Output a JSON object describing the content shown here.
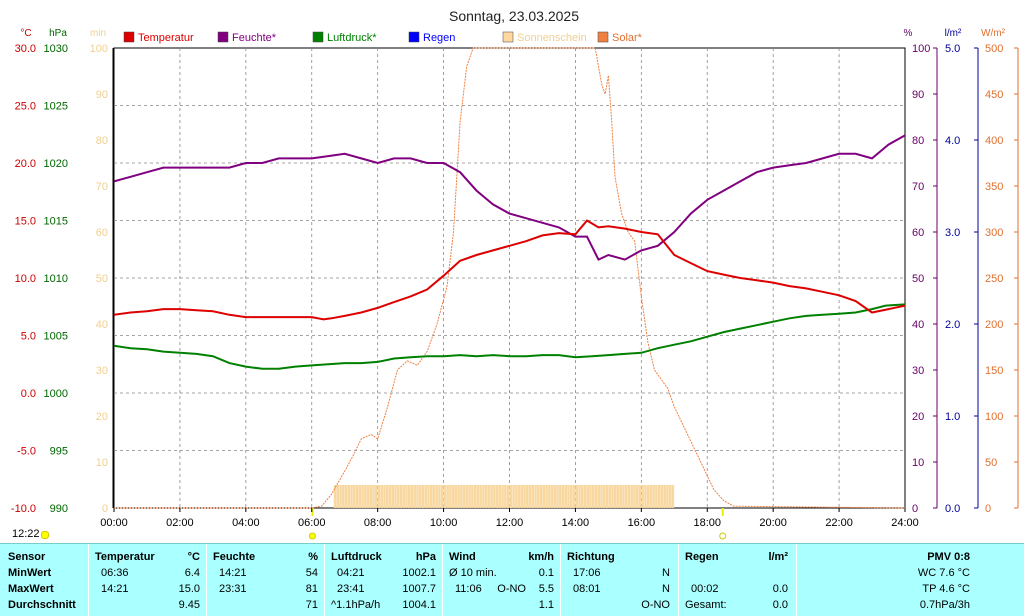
{
  "chart_data": {
    "type": "line",
    "title": "Sonntag, 23.03.2025",
    "x_ticks": [
      "00:00",
      "02:00",
      "04:00",
      "06:00",
      "08:00",
      "10:00",
      "12:00",
      "14:00",
      "16:00",
      "18:00",
      "20:00",
      "22:00",
      "24:00"
    ],
    "left_axes": [
      {
        "unit": "°C",
        "color": "#cc0000",
        "ticks": [
          "30.0",
          "25.0",
          "20.0",
          "15.0",
          "10.0",
          "5.0",
          "0.0",
          "-5.0",
          "-10.0"
        ],
        "range": [
          -10,
          30
        ]
      },
      {
        "unit": "hPa",
        "color": "#006600",
        "ticks": [
          "1030",
          "1025",
          "1020",
          "1015",
          "1010",
          "1005",
          "1000",
          "995",
          "990"
        ],
        "range": [
          990,
          1030
        ]
      },
      {
        "unit": "min",
        "color": "#f0d090",
        "ticks": [
          "100",
          "90",
          "80",
          "70",
          "60",
          "50",
          "40",
          "30",
          "20",
          "10",
          "0"
        ],
        "range": [
          0,
          100
        ]
      }
    ],
    "right_axes": [
      {
        "unit": "%",
        "color": "#660066",
        "ticks": [
          "100",
          "90",
          "80",
          "70",
          "60",
          "50",
          "40",
          "30",
          "20",
          "10",
          "0"
        ],
        "range": [
          0,
          100
        ]
      },
      {
        "unit": "l/m²",
        "color": "#000099",
        "ticks": [
          "5.0",
          "4.0",
          "3.0",
          "2.0",
          "1.0",
          "0.0"
        ],
        "range": [
          0,
          5
        ]
      },
      {
        "unit": "W/m²",
        "color": "#e07030",
        "ticks": [
          "500",
          "450",
          "400",
          "350",
          "300",
          "250",
          "200",
          "150",
          "100",
          "50",
          "0"
        ],
        "range": [
          0,
          500
        ]
      }
    ],
    "legend": [
      {
        "label": "Temperatur",
        "color": "#dd0000"
      },
      {
        "label": "Feuchte*",
        "color": "#800080"
      },
      {
        "label": "Luftdruck*",
        "color": "#008000"
      },
      {
        "label": "Regen",
        "color": "#0000ff"
      },
      {
        "label": "Sonnenschein",
        "color": "#ffd8a0"
      },
      {
        "label": "Solar*",
        "color": "#f08040"
      }
    ],
    "series": [
      {
        "name": "Temperatur",
        "axis": "°C",
        "color": "#dd0000",
        "x": [
          0,
          0.5,
          1,
          1.5,
          2,
          2.5,
          3,
          3.5,
          4,
          4.5,
          5,
          5.5,
          6,
          6.36,
          6.6,
          7,
          7.5,
          8,
          8.5,
          9,
          9.5,
          10,
          10.5,
          11,
          11.5,
          12,
          12.5,
          13,
          13.5,
          14,
          14.35,
          14.7,
          15,
          15.5,
          16,
          16.5,
          17,
          17.5,
          18,
          18.5,
          19,
          19.5,
          20,
          20.5,
          21,
          21.5,
          22,
          22.5,
          23,
          23.5,
          24
        ],
        "y": [
          6.8,
          7.0,
          7.1,
          7.3,
          7.3,
          7.2,
          7.1,
          6.8,
          6.6,
          6.6,
          6.6,
          6.6,
          6.6,
          6.4,
          6.5,
          6.7,
          7.0,
          7.4,
          7.9,
          8.4,
          9.0,
          10.2,
          11.5,
          12.0,
          12.4,
          12.8,
          13.2,
          13.7,
          13.9,
          13.8,
          15.0,
          14.4,
          14.5,
          14.3,
          14.0,
          13.8,
          12.0,
          11.3,
          10.6,
          10.3,
          10.0,
          9.8,
          9.6,
          9.3,
          9.1,
          8.8,
          8.5,
          8.0,
          7.0,
          7.3,
          7.6
        ]
      },
      {
        "name": "Feuchte*",
        "axis": "%",
        "color": "#800080",
        "x": [
          0,
          0.5,
          1,
          1.5,
          2,
          2.5,
          3,
          3.5,
          4,
          4.5,
          5,
          5.5,
          6,
          6.5,
          7,
          7.5,
          8,
          8.5,
          9,
          9.5,
          10,
          10.5,
          11,
          11.5,
          12,
          12.5,
          13,
          13.5,
          14,
          14.35,
          14.7,
          15,
          15.5,
          16,
          16.5,
          17,
          17.5,
          18,
          18.5,
          19,
          19.5,
          20,
          20.5,
          21,
          21.5,
          22,
          22.5,
          23,
          23.5,
          24
        ],
        "y": [
          71,
          72,
          73,
          74,
          74,
          74,
          74,
          74,
          75,
          75,
          76,
          76,
          76,
          76.5,
          77,
          76,
          75,
          76,
          76,
          75,
          75,
          73,
          69,
          66,
          64,
          63,
          62,
          61,
          59,
          59,
          54,
          55,
          54,
          56,
          57,
          60,
          64,
          67,
          69,
          71,
          73,
          74,
          74.5,
          75,
          76,
          77,
          77,
          76,
          79,
          81
        ]
      },
      {
        "name": "Luftdruck*",
        "axis": "hPa",
        "color": "#008000",
        "x": [
          0,
          0.5,
          1,
          1.5,
          2,
          2.5,
          3,
          3.5,
          4,
          4.5,
          5,
          5.5,
          6,
          6.5,
          7,
          7.5,
          8,
          8.5,
          9,
          9.5,
          10,
          10.5,
          11,
          11.5,
          12,
          12.5,
          13,
          13.5,
          14,
          14.5,
          15,
          15.5,
          16,
          16.5,
          17,
          17.5,
          18,
          18.5,
          19,
          19.5,
          20,
          20.5,
          21,
          21.5,
          22,
          22.5,
          23,
          23.41,
          24
        ],
        "y": [
          1004.1,
          1003.9,
          1003.8,
          1003.6,
          1003.5,
          1003.4,
          1003.2,
          1002.6,
          1002.3,
          1002.1,
          1002.1,
          1002.3,
          1002.4,
          1002.5,
          1002.6,
          1002.6,
          1002.7,
          1003.0,
          1003.1,
          1003.2,
          1003.2,
          1003.3,
          1003.2,
          1003.3,
          1003.2,
          1003.2,
          1003.3,
          1003.3,
          1003.1,
          1003.2,
          1003.3,
          1003.4,
          1003.5,
          1003.9,
          1004.2,
          1004.5,
          1004.9,
          1005.3,
          1005.6,
          1005.9,
          1006.2,
          1006.5,
          1006.7,
          1006.8,
          1006.9,
          1007.0,
          1007.3,
          1007.6,
          1007.7
        ]
      },
      {
        "name": "Solar*",
        "axis": "W/m²",
        "color": "#f08040",
        "x": [
          0,
          6.0,
          6.3,
          6.6,
          7.0,
          7.3,
          7.5,
          7.8,
          8.0,
          8.3,
          8.6,
          8.9,
          9.2,
          9.5,
          9.8,
          10.1,
          10.3,
          10.5,
          10.7,
          10.9,
          11.1,
          14.6,
          14.7,
          14.8,
          14.9,
          15.0,
          15.1,
          15.2,
          15.4,
          15.6,
          15.8,
          16.0,
          16.2,
          16.4,
          16.6,
          16.8,
          17.0,
          17.4,
          17.8,
          18.2,
          18.5,
          18.8,
          24
        ],
        "y": [
          0,
          0,
          2,
          15,
          40,
          60,
          75,
          80,
          75,
          110,
          150,
          160,
          155,
          170,
          200,
          240,
          300,
          420,
          480,
          500,
          500,
          500,
          480,
          460,
          450,
          470,
          420,
          360,
          320,
          300,
          290,
          230,
          180,
          150,
          140,
          130,
          110,
          80,
          50,
          20,
          8,
          2,
          0
        ]
      }
    ],
    "sunshine_bars": {
      "from": 6.67,
      "to": 17.0,
      "value": 5
    },
    "sun_markers": {
      "sunrise": 6.02,
      "sunset": 18.47
    }
  },
  "corner_time": "12:22",
  "table": {
    "sensor_col": {
      "header": "Sensor",
      "row1": "MinWert",
      "row2": "MaxWert",
      "row3": "Durchschnitt"
    },
    "temperatur": {
      "header": "Temperatur",
      "unit": "°C",
      "min_time": "06:36",
      "min_val": "6.4",
      "max_time": "14:21",
      "max_val": "15.0",
      "avg_val": "9.45"
    },
    "feuchte": {
      "header": "Feuchte",
      "unit": "%",
      "min_time": "14:21",
      "min_val": "54",
      "max_time": "23:31",
      "max_val": "81",
      "avg_val": "71"
    },
    "luftdruck": {
      "header": "Luftdruck",
      "unit": "hPa",
      "min_time": "04:21",
      "min_val": "1002.1",
      "max_time": "23:41",
      "max_val": "1007.7",
      "avg_label": "^1.1hPa/h",
      "avg_val": "1004.1"
    },
    "wind": {
      "header": "Wind",
      "unit": "km/h",
      "min_label": "Ø 10 min.",
      "min_val": "0.1",
      "max_time": "11:06",
      "max_dir": "O-NO",
      "max_val": "5.5",
      "avg_val": "1.1"
    },
    "richtung": {
      "header": "Richtung",
      "min_time": "17:06",
      "min_dir": "N",
      "max_time": "08:01",
      "max_dir": "N",
      "avg_dir": "O-NO"
    },
    "regen": {
      "header": "Regen",
      "unit": "l/m²",
      "max_time": "00:02",
      "max_val": "0.0",
      "total_label": "Gesamt:",
      "total_val": "0.0"
    },
    "pmv": {
      "header": "PMV 0:8",
      "line1": "WC 7.6 °C",
      "line2": "TP 4.6 °C",
      "line3": "0.7hPa/3h"
    }
  }
}
